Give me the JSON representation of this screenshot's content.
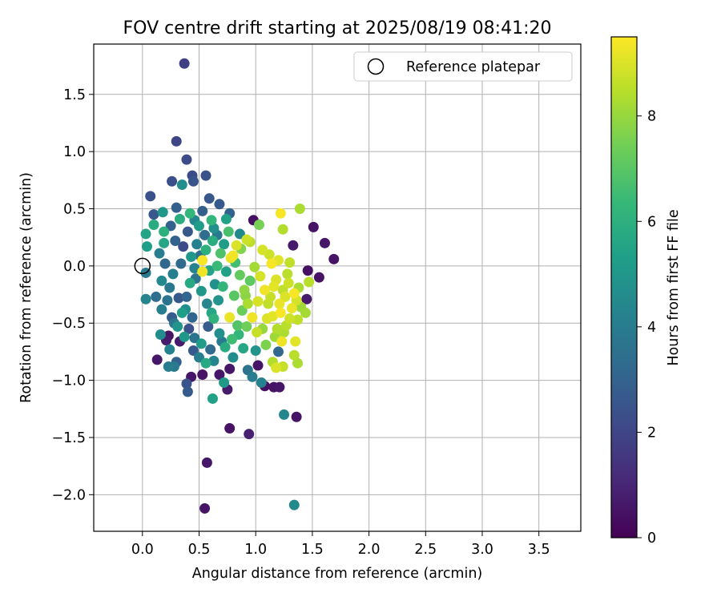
{
  "chart_data": {
    "type": "scatter",
    "title": "FOV centre drift starting at 2025/08/19 08:41:20",
    "xlabel": "Angular distance from reference (arcmin)",
    "ylabel": "Rotation from reference (arcmin)",
    "colorbar_label": "Hours from first FF file",
    "xlim": [
      -0.43,
      3.87
    ],
    "ylim": [
      -2.32,
      1.94
    ],
    "x_ticks": [
      0.0,
      0.5,
      1.0,
      1.5,
      2.0,
      2.5,
      3.0,
      3.5
    ],
    "x_tick_labels": [
      "0.0",
      "0.5",
      "1.0",
      "1.5",
      "2.0",
      "2.5",
      "3.0",
      "3.5"
    ],
    "y_ticks": [
      1.5,
      1.0,
      0.5,
      0.0,
      -0.5,
      -1.0,
      -1.5,
      -2.0
    ],
    "y_tick_labels": [
      "1.5",
      "1.0",
      "0.5",
      "0.0",
      "−0.5",
      "−1.0",
      "−1.5",
      "−2.0"
    ],
    "color_range": [
      0,
      9.5
    ],
    "colorbar_ticks": [
      0,
      2,
      4,
      6,
      8
    ],
    "colorbar_tick_labels": [
      "0",
      "2",
      "4",
      "6",
      "8"
    ],
    "colormap": [
      "#440154",
      "#482878",
      "#3e4989",
      "#31688e",
      "#26828e",
      "#1f9e89",
      "#35b779",
      "#6ece58",
      "#b5de2b",
      "#fde725"
    ],
    "grid": true,
    "legend": {
      "position": "top-right",
      "entries": [
        "Reference platepar"
      ]
    },
    "reference_point": {
      "x": 0.0,
      "y": 0.0
    },
    "points": [
      {
        "x": 0.37,
        "y": 1.77,
        "t": 1.8
      },
      {
        "x": 0.3,
        "y": 1.09,
        "t": 2.0
      },
      {
        "x": 0.39,
        "y": 0.93,
        "t": 2.2
      },
      {
        "x": 0.26,
        "y": 0.74,
        "t": 2.3
      },
      {
        "x": 0.44,
        "y": 0.79,
        "t": 2.2
      },
      {
        "x": 0.56,
        "y": 0.79,
        "t": 2.4
      },
      {
        "x": 0.35,
        "y": 0.71,
        "t": 4.6
      },
      {
        "x": 0.45,
        "y": 0.74,
        "t": 2.5
      },
      {
        "x": 0.07,
        "y": 0.61,
        "t": 2.4
      },
      {
        "x": 0.59,
        "y": 0.59,
        "t": 2.6
      },
      {
        "x": 0.68,
        "y": 0.54,
        "t": 2.7
      },
      {
        "x": 0.1,
        "y": 0.45,
        "t": 2.6
      },
      {
        "x": 0.18,
        "y": 0.47,
        "t": 5.0
      },
      {
        "x": 0.3,
        "y": 0.51,
        "t": 2.9
      },
      {
        "x": 0.77,
        "y": 0.46,
        "t": 3.0
      },
      {
        "x": 0.03,
        "y": 0.28,
        "t": 5.5
      },
      {
        "x": 0.04,
        "y": 0.17,
        "t": 5.3
      },
      {
        "x": 0.1,
        "y": 0.36,
        "t": 5.8
      },
      {
        "x": 0.19,
        "y": 0.3,
        "t": 6.0
      },
      {
        "x": 0.42,
        "y": 0.46,
        "t": 6.3
      },
      {
        "x": 0.5,
        "y": 0.35,
        "t": 5.2
      },
      {
        "x": 0.63,
        "y": 0.33,
        "t": 4.8
      },
      {
        "x": 0.86,
        "y": 0.28,
        "t": 4.5
      },
      {
        "x": 0.98,
        "y": 0.4,
        "t": 0.4
      },
      {
        "x": 1.03,
        "y": 0.36,
        "t": 7.5
      },
      {
        "x": 1.22,
        "y": 0.46,
        "t": 9.4
      },
      {
        "x": 1.39,
        "y": 0.5,
        "t": 8.3
      },
      {
        "x": 1.24,
        "y": 0.32,
        "t": 8.4
      },
      {
        "x": 1.51,
        "y": 0.34,
        "t": 0.5
      },
      {
        "x": 1.61,
        "y": 0.2,
        "t": 0.6
      },
      {
        "x": 1.69,
        "y": 0.06,
        "t": 0.5
      },
      {
        "x": 1.33,
        "y": 0.18,
        "t": 0.7
      },
      {
        "x": 0.92,
        "y": 0.23,
        "t": 8.8
      },
      {
        "x": 0.83,
        "y": 0.18,
        "t": 9.0
      },
      {
        "x": 0.78,
        "y": 0.07,
        "t": 9.2
      },
      {
        "x": 0.53,
        "y": -0.05,
        "t": 9.3
      },
      {
        "x": 1.12,
        "y": 0.1,
        "t": 8.8
      },
      {
        "x": 1.2,
        "y": 0.05,
        "t": 9.1
      },
      {
        "x": 1.3,
        "y": 0.03,
        "t": 8.6
      },
      {
        "x": 1.46,
        "y": -0.04,
        "t": 0.4
      },
      {
        "x": 1.56,
        "y": -0.1,
        "t": 0.5
      },
      {
        "x": 1.47,
        "y": -0.14,
        "t": 8.5
      },
      {
        "x": 1.38,
        "y": -0.19,
        "t": 8.3
      },
      {
        "x": 1.45,
        "y": -0.29,
        "t": 0.7
      },
      {
        "x": 1.36,
        "y": -0.3,
        "t": 8.9
      },
      {
        "x": 1.44,
        "y": -0.41,
        "t": 8.2
      },
      {
        "x": 1.37,
        "y": -0.47,
        "t": 8.6
      },
      {
        "x": 0.03,
        "y": -0.06,
        "t": 3.9
      },
      {
        "x": 0.03,
        "y": -0.29,
        "t": 4.3
      },
      {
        "x": 0.17,
        "y": -0.38,
        "t": 4.1
      },
      {
        "x": 0.16,
        "y": -0.6,
        "t": 4.6
      },
      {
        "x": 0.23,
        "y": -0.61,
        "t": 0.5
      },
      {
        "x": 0.21,
        "y": -0.65,
        "t": 0.7
      },
      {
        "x": 0.13,
        "y": -0.82,
        "t": 0.6
      },
      {
        "x": 0.24,
        "y": -0.73,
        "t": 4.2
      },
      {
        "x": 0.23,
        "y": -0.88,
        "t": 4.0
      },
      {
        "x": 0.3,
        "y": -0.84,
        "t": 2.9
      },
      {
        "x": 0.28,
        "y": -0.88,
        "t": 3.9
      },
      {
        "x": 0.33,
        "y": -0.66,
        "t": 0.7
      },
      {
        "x": 0.39,
        "y": -1.03,
        "t": 2.5
      },
      {
        "x": 0.4,
        "y": -1.1,
        "t": 2.7
      },
      {
        "x": 0.43,
        "y": -0.97,
        "t": 0.6
      },
      {
        "x": 0.53,
        "y": -0.95,
        "t": 0.5
      },
      {
        "x": 0.56,
        "y": -0.85,
        "t": 5.7
      },
      {
        "x": 0.63,
        "y": -0.83,
        "t": 4.3
      },
      {
        "x": 0.62,
        "y": -1.16,
        "t": 5.4
      },
      {
        "x": 0.68,
        "y": -0.95,
        "t": 0.6
      },
      {
        "x": 0.72,
        "y": -1.02,
        "t": 5.1
      },
      {
        "x": 0.75,
        "y": -1.08,
        "t": 0.7
      },
      {
        "x": 0.77,
        "y": -0.9,
        "t": 0.6
      },
      {
        "x": 0.77,
        "y": -1.42,
        "t": 0.5
      },
      {
        "x": 0.94,
        "y": -1.47,
        "t": 0.9
      },
      {
        "x": 0.93,
        "y": -0.91,
        "t": 3.6
      },
      {
        "x": 0.97,
        "y": -0.97,
        "t": 4.0
      },
      {
        "x": 1.02,
        "y": -0.87,
        "t": 0.5
      },
      {
        "x": 1.05,
        "y": -1.02,
        "t": 4.2
      },
      {
        "x": 1.08,
        "y": -1.05,
        "t": 0.4
      },
      {
        "x": 1.16,
        "y": -1.06,
        "t": 0.5
      },
      {
        "x": 1.21,
        "y": -1.06,
        "t": 0.6
      },
      {
        "x": 1.25,
        "y": -1.3,
        "t": 4.4
      },
      {
        "x": 1.36,
        "y": -1.32,
        "t": 0.5
      },
      {
        "x": 1.34,
        "y": -2.09,
        "t": 4.5
      },
      {
        "x": 0.57,
        "y": -1.72,
        "t": 0.6
      },
      {
        "x": 0.55,
        "y": -2.12,
        "t": 0.5
      },
      {
        "x": 1.34,
        "y": -0.78,
        "t": 8.5
      },
      {
        "x": 1.37,
        "y": -0.85,
        "t": 8.3
      },
      {
        "x": 1.35,
        "y": -0.66,
        "t": 9.1
      },
      {
        "x": 1.24,
        "y": -0.88,
        "t": 8.7
      },
      {
        "x": 1.18,
        "y": -0.89,
        "t": 9.0
      },
      {
        "x": 1.15,
        "y": -0.84,
        "t": 8.4
      },
      {
        "x": 1.2,
        "y": -0.75,
        "t": 3.2
      },
      {
        "x": 1.23,
        "y": -0.66,
        "t": 9.3
      },
      {
        "x": 0.77,
        "y": -0.45,
        "t": 9.2
      },
      {
        "x": 0.53,
        "y": 0.05,
        "t": 9.4
      },
      {
        "x": 0.8,
        "y": 0.09,
        "t": 9.3
      },
      {
        "x": 0.29,
        "y": 0.22,
        "t": 3.0
      },
      {
        "x": 0.36,
        "y": 0.17,
        "t": 2.2
      },
      {
        "x": 0.34,
        "y": 0.02,
        "t": 3.3
      },
      {
        "x": 0.27,
        "y": -0.07,
        "t": 4.1
      },
      {
        "x": 0.24,
        "y": -0.19,
        "t": 3.8
      },
      {
        "x": 0.32,
        "y": -0.28,
        "t": 2.6
      },
      {
        "x": 0.38,
        "y": -0.38,
        "t": 4.7
      },
      {
        "x": 0.44,
        "y": -0.45,
        "t": 3.1
      },
      {
        "x": 0.41,
        "y": -0.55,
        "t": 2.4
      },
      {
        "x": 0.46,
        "y": -0.63,
        "t": 3.6
      },
      {
        "x": 0.52,
        "y": -0.68,
        "t": 5.2
      },
      {
        "x": 0.58,
        "y": -0.53,
        "t": 2.8
      },
      {
        "x": 0.61,
        "y": -0.41,
        "t": 5.6
      },
      {
        "x": 0.67,
        "y": -0.3,
        "t": 4.9
      },
      {
        "x": 0.71,
        "y": -0.18,
        "t": 6.2
      },
      {
        "x": 0.74,
        "y": -0.05,
        "t": 5.4
      },
      {
        "x": 0.69,
        "y": 0.11,
        "t": 6.8
      },
      {
        "x": 0.62,
        "y": 0.22,
        "t": 5.9
      },
      {
        "x": 0.55,
        "y": 0.27,
        "t": 3.4
      },
      {
        "x": 0.48,
        "y": 0.19,
        "t": 4.2
      },
      {
        "x": 0.43,
        "y": 0.08,
        "t": 5.1
      },
      {
        "x": 0.47,
        "y": -0.11,
        "t": 3.7
      },
      {
        "x": 0.52,
        "y": -0.22,
        "t": 5.0
      },
      {
        "x": 0.57,
        "y": -0.33,
        "t": 4.4
      },
      {
        "x": 0.63,
        "y": -0.46,
        "t": 6.1
      },
      {
        "x": 0.68,
        "y": -0.59,
        "t": 4.7
      },
      {
        "x": 0.73,
        "y": -0.71,
        "t": 5.8
      },
      {
        "x": 0.79,
        "y": -0.64,
        "t": 6.5
      },
      {
        "x": 0.84,
        "y": -0.52,
        "t": 6.9
      },
      {
        "x": 0.88,
        "y": -0.39,
        "t": 7.3
      },
      {
        "x": 0.91,
        "y": -0.26,
        "t": 7.8
      },
      {
        "x": 0.95,
        "y": -0.13,
        "t": 7.1
      },
      {
        "x": 0.99,
        "y": -0.01,
        "t": 8.2
      },
      {
        "x": 1.04,
        "y": -0.09,
        "t": 8.9
      },
      {
        "x": 1.08,
        "y": -0.21,
        "t": 9.3
      },
      {
        "x": 1.11,
        "y": -0.33,
        "t": 8.6
      },
      {
        "x": 1.15,
        "y": -0.44,
        "t": 9.1
      },
      {
        "x": 1.19,
        "y": -0.55,
        "t": 8.4
      },
      {
        "x": 1.22,
        "y": -0.41,
        "t": 9.4
      },
      {
        "x": 1.26,
        "y": -0.27,
        "t": 9.0
      },
      {
        "x": 1.29,
        "y": -0.15,
        "t": 8.8
      },
      {
        "x": 1.32,
        "y": -0.37,
        "t": 9.2
      },
      {
        "x": 1.27,
        "y": -0.52,
        "t": 8.5
      },
      {
        "x": 1.17,
        "y": -0.62,
        "t": 8.1
      },
      {
        "x": 1.09,
        "y": -0.69,
        "t": 7.6
      },
      {
        "x": 1.01,
        "y": -0.58,
        "t": 8.7
      },
      {
        "x": 0.97,
        "y": -0.45,
        "t": 9.3
      },
      {
        "x": 0.93,
        "y": -0.33,
        "t": 8.3
      },
      {
        "x": 0.9,
        "y": -0.21,
        "t": 7.9
      },
      {
        "x": 0.86,
        "y": -0.08,
        "t": 7.2
      },
      {
        "x": 0.82,
        "y": 0.03,
        "t": 6.6
      },
      {
        "x": 0.87,
        "y": 0.15,
        "t": 7.7
      },
      {
        "x": 0.95,
        "y": 0.21,
        "t": 8.5
      },
      {
        "x": 1.06,
        "y": 0.14,
        "t": 8.9
      },
      {
        "x": 1.14,
        "y": 0.02,
        "t": 9.4
      },
      {
        "x": 1.18,
        "y": -0.12,
        "t": 9.0
      },
      {
        "x": 1.24,
        "y": -0.21,
        "t": 8.6
      },
      {
        "x": 0.15,
        "y": 0.11,
        "t": 4.0
      },
      {
        "x": 0.2,
        "y": 0.02,
        "t": 3.2
      },
      {
        "x": 0.17,
        "y": -0.13,
        "t": 4.5
      },
      {
        "x": 0.22,
        "y": -0.3,
        "t": 3.6
      },
      {
        "x": 0.26,
        "y": -0.45,
        "t": 2.8
      },
      {
        "x": 0.31,
        "y": -0.53,
        "t": 4.9
      },
      {
        "x": 0.35,
        "y": -0.41,
        "t": 5.3
      },
      {
        "x": 0.39,
        "y": -0.27,
        "t": 3.1
      },
      {
        "x": 0.42,
        "y": -0.15,
        "t": 5.7
      },
      {
        "x": 0.46,
        "y": -0.02,
        "t": 4.3
      },
      {
        "x": 0.51,
        "y": 0.09,
        "t": 3.5
      },
      {
        "x": 0.56,
        "y": 0.14,
        "t": 6.0
      },
      {
        "x": 0.59,
        "y": -0.04,
        "t": 5.5
      },
      {
        "x": 0.64,
        "y": -0.16,
        "t": 4.8
      },
      {
        "x": 0.66,
        "y": 0.0,
        "t": 6.4
      },
      {
        "x": 0.72,
        "y": 0.19,
        "t": 5.2
      },
      {
        "x": 0.76,
        "y": 0.3,
        "t": 6.7
      },
      {
        "x": 0.81,
        "y": -0.26,
        "t": 7.0
      },
      {
        "x": 0.85,
        "y": -0.6,
        "t": 6.2
      },
      {
        "x": 0.89,
        "y": -0.72,
        "t": 5.6
      },
      {
        "x": 0.8,
        "y": -0.8,
        "t": 4.6
      },
      {
        "x": 0.7,
        "y": -0.66,
        "t": 3.9
      },
      {
        "x": 0.6,
        "y": -0.73,
        "t": 3.3
      },
      {
        "x": 0.5,
        "y": -0.8,
        "t": 4.1
      },
      {
        "x": 0.45,
        "y": -0.74,
        "t": 2.7
      },
      {
        "x": 0.37,
        "y": -0.62,
        "t": 5.0
      },
      {
        "x": 0.28,
        "y": -0.5,
        "t": 3.7
      },
      {
        "x": 0.12,
        "y": -0.27,
        "t": 3.4
      },
      {
        "x": 0.19,
        "y": 0.2,
        "t": 5.6
      },
      {
        "x": 0.25,
        "y": 0.35,
        "t": 3.0
      },
      {
        "x": 0.33,
        "y": 0.41,
        "t": 5.9
      },
      {
        "x": 0.4,
        "y": 0.3,
        "t": 2.6
      },
      {
        "x": 0.46,
        "y": 0.4,
        "t": 4.4
      },
      {
        "x": 0.53,
        "y": 0.48,
        "t": 2.9
      },
      {
        "x": 0.61,
        "y": 0.4,
        "t": 6.3
      },
      {
        "x": 0.66,
        "y": 0.27,
        "t": 3.8
      },
      {
        "x": 0.74,
        "y": 0.41,
        "t": 5.4
      },
      {
        "x": 1.0,
        "y": -0.74,
        "t": 4.9
      },
      {
        "x": 1.06,
        "y": -0.55,
        "t": 8.0
      },
      {
        "x": 1.13,
        "y": -0.27,
        "t": 8.7
      },
      {
        "x": 1.21,
        "y": -0.33,
        "t": 9.2
      },
      {
        "x": 1.3,
        "y": -0.46,
        "t": 8.8
      },
      {
        "x": 1.34,
        "y": -0.24,
        "t": 9.4
      },
      {
        "x": 1.4,
        "y": -0.36,
        "t": 8.1
      },
      {
        "x": 1.28,
        "y": -0.07,
        "t": 8.5
      },
      {
        "x": 1.16,
        "y": -0.18,
        "t": 9.1
      },
      {
        "x": 1.02,
        "y": -0.31,
        "t": 8.9
      },
      {
        "x": 0.92,
        "y": -0.53,
        "t": 7.4
      },
      {
        "x": 1.1,
        "y": -0.46,
        "t": 9.0
      },
      {
        "x": 1.25,
        "y": -0.58,
        "t": 8.3
      }
    ]
  }
}
